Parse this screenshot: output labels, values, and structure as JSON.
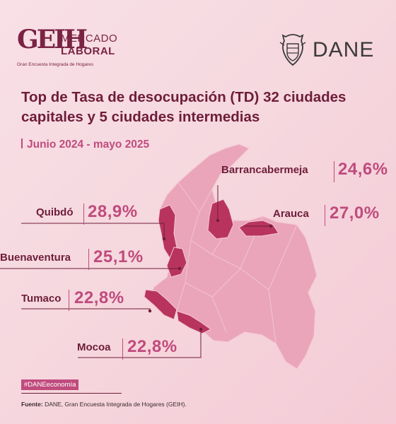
{
  "header": {
    "geih_mark": "GEIH",
    "geih_line1": "MERCADO",
    "geih_line2": "LABORAL",
    "geih_subtitle": "Gran Encuesta Integrada de Hogares",
    "dane": "DANE"
  },
  "title": "Top de Tasa de desocupación (TD) 32 ciudades capitales y 5 ciudades intermedias",
  "period": "Junio 2024 - mayo 2025",
  "cities": [
    {
      "name": "Barrancabermeja",
      "value": "24,6%"
    },
    {
      "name": "Quibdó",
      "value": "28,9%"
    },
    {
      "name": "Arauca",
      "value": "27,0%"
    },
    {
      "name": "Buenaventura",
      "value": "25,1%"
    },
    {
      "name": "Tumaco",
      "value": "22,8%"
    },
    {
      "name": "Mocoa",
      "value": "22,8%"
    }
  ],
  "hashtag": "#DANEeconomía",
  "source_label": "Fuente:",
  "source_text": " DANE, Gran Encuesta Integrada de Hogares (GEIH).",
  "colors": {
    "background": "#f6d8df",
    "map_fill": "#eaa5bb",
    "highlight": "#b8345f",
    "accent": "#c04b7d",
    "dark": "#6e1d3a"
  }
}
